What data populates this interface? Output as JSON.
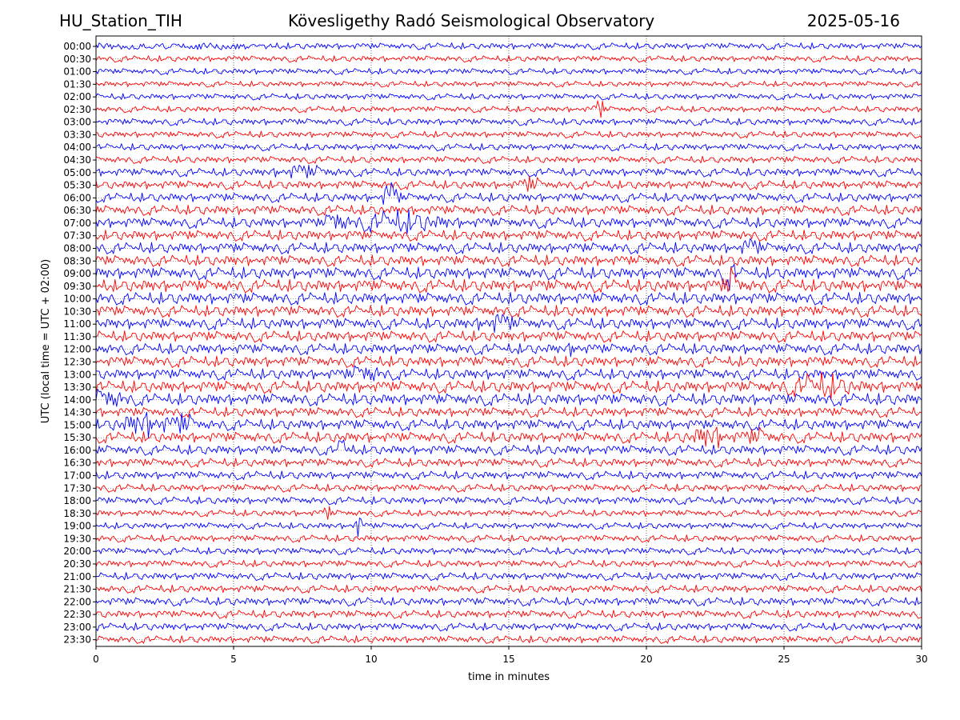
{
  "header": {
    "station": "HU_Station_TIH",
    "observatory": "Kövesligethy Radó Seismological Observatory",
    "date": "2025-05-16"
  },
  "chart_data": {
    "type": "line",
    "subtype": "helicorder",
    "xlabel": "time in minutes",
    "ylabel": "UTC (local time = UTC + 02:00)",
    "xlim": [
      0,
      30
    ],
    "x_ticks": [
      0,
      5,
      10,
      15,
      20,
      25,
      30
    ],
    "grid": true,
    "series_colors": [
      "#0000ff",
      "#ff0000"
    ],
    "traces": [
      {
        "label": "00:00",
        "amplitude": 0.3,
        "events": []
      },
      {
        "label": "00:30",
        "amplitude": 0.28,
        "events": []
      },
      {
        "label": "01:00",
        "amplitude": 0.28,
        "events": []
      },
      {
        "label": "01:30",
        "amplitude": 0.26,
        "events": []
      },
      {
        "label": "02:00",
        "amplitude": 0.28,
        "events": []
      },
      {
        "label": "02:30",
        "amplitude": 0.28,
        "events": [
          [
            18.3,
            1.0,
            0.15
          ]
        ]
      },
      {
        "label": "03:00",
        "amplitude": 0.32,
        "events": []
      },
      {
        "label": "03:30",
        "amplitude": 0.3,
        "events": []
      },
      {
        "label": "04:00",
        "amplitude": 0.32,
        "events": []
      },
      {
        "label": "04:30",
        "amplitude": 0.32,
        "events": []
      },
      {
        "label": "05:00",
        "amplitude": 0.38,
        "events": [
          [
            7.5,
            0.45,
            0.8
          ]
        ]
      },
      {
        "label": "05:30",
        "amplitude": 0.4,
        "events": [
          [
            15.8,
            0.6,
            0.3
          ]
        ]
      },
      {
        "label": "06:00",
        "amplitude": 0.42,
        "events": [
          [
            10.7,
            1.3,
            0.25
          ]
        ]
      },
      {
        "label": "06:30",
        "amplitude": 0.45,
        "events": []
      },
      {
        "label": "07:00",
        "amplitude": 0.48,
        "events": [
          [
            8.7,
            0.9,
            0.3
          ],
          [
            11.0,
            0.7,
            1.4
          ]
        ]
      },
      {
        "label": "07:30",
        "amplitude": 0.48,
        "events": []
      },
      {
        "label": "08:00",
        "amplitude": 0.5,
        "events": [
          [
            23.8,
            0.6,
            0.3
          ]
        ]
      },
      {
        "label": "08:30",
        "amplitude": 0.5,
        "events": []
      },
      {
        "label": "09:00",
        "amplitude": 0.55,
        "events": [
          [
            23.0,
            1.1,
            0.2
          ]
        ]
      },
      {
        "label": "09:30",
        "amplitude": 0.58,
        "events": [
          [
            23.1,
            1.2,
            0.25
          ]
        ]
      },
      {
        "label": "10:00",
        "amplitude": 0.55,
        "events": []
      },
      {
        "label": "10:30",
        "amplitude": 0.52,
        "events": []
      },
      {
        "label": "11:00",
        "amplitude": 0.52,
        "events": [
          [
            14.6,
            0.6,
            0.6
          ]
        ]
      },
      {
        "label": "11:30",
        "amplitude": 0.5,
        "events": []
      },
      {
        "label": "12:00",
        "amplitude": 0.5,
        "events": [
          [
            17.4,
            0.5,
            0.2
          ]
        ]
      },
      {
        "label": "12:30",
        "amplitude": 0.5,
        "events": []
      },
      {
        "label": "13:00",
        "amplitude": 0.5,
        "events": [
          [
            9.8,
            0.6,
            0.5
          ]
        ]
      },
      {
        "label": "13:30",
        "amplitude": 0.55,
        "events": [
          [
            26.3,
            0.8,
            1.0
          ]
        ]
      },
      {
        "label": "14:00",
        "amplitude": 0.55,
        "events": [
          [
            0.4,
            0.7,
            0.5
          ]
        ]
      },
      {
        "label": "14:30",
        "amplitude": 0.45,
        "events": []
      },
      {
        "label": "15:00",
        "amplitude": 0.5,
        "events": [
          [
            1.8,
            0.9,
            0.8
          ],
          [
            3.2,
            0.8,
            0.3
          ]
        ]
      },
      {
        "label": "15:30",
        "amplitude": 0.5,
        "events": [
          [
            22.3,
            0.8,
            0.6
          ],
          [
            24.0,
            0.5,
            0.4
          ]
        ]
      },
      {
        "label": "16:00",
        "amplitude": 0.45,
        "events": [
          [
            9.0,
            1.5,
            0.15
          ]
        ]
      },
      {
        "label": "16:30",
        "amplitude": 0.4,
        "events": []
      },
      {
        "label": "17:00",
        "amplitude": 0.38,
        "events": []
      },
      {
        "label": "17:30",
        "amplitude": 0.35,
        "events": []
      },
      {
        "label": "18:00",
        "amplitude": 0.35,
        "events": []
      },
      {
        "label": "18:30",
        "amplitude": 0.3,
        "events": [
          [
            8.4,
            0.6,
            0.15
          ]
        ]
      },
      {
        "label": "19:00",
        "amplitude": 0.3,
        "events": [
          [
            9.5,
            1.1,
            0.15
          ]
        ]
      },
      {
        "label": "19:30",
        "amplitude": 0.32,
        "events": []
      },
      {
        "label": "20:00",
        "amplitude": 0.32,
        "events": []
      },
      {
        "label": "20:30",
        "amplitude": 0.32,
        "events": []
      },
      {
        "label": "21:00",
        "amplitude": 0.35,
        "events": []
      },
      {
        "label": "21:30",
        "amplitude": 0.35,
        "events": []
      },
      {
        "label": "22:00",
        "amplitude": 0.38,
        "events": []
      },
      {
        "label": "22:30",
        "amplitude": 0.36,
        "events": []
      },
      {
        "label": "23:00",
        "amplitude": 0.36,
        "events": []
      },
      {
        "label": "23:30",
        "amplitude": 0.34,
        "events": []
      }
    ]
  }
}
